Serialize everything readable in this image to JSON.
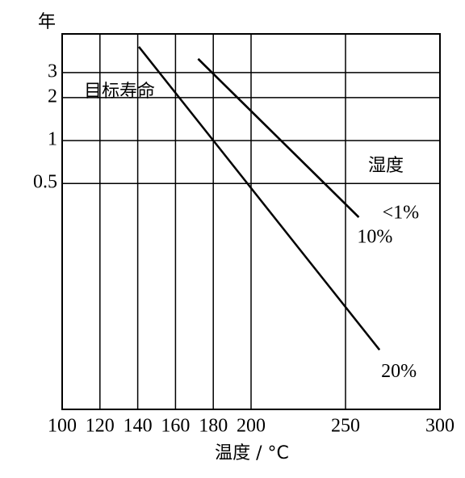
{
  "chart_data": {
    "type": "line",
    "y_unit_label": "年",
    "x_label": "温度 / °C",
    "annotation": "目标寿命",
    "legend_title": "湿度",
    "xlim": [
      100,
      300
    ],
    "xticks": [
      100,
      120,
      140,
      160,
      180,
      200,
      250,
      300
    ],
    "ylim": [
      0.013,
      5.6
    ],
    "yticks": [
      3,
      2,
      1,
      0.5
    ],
    "log_y": true,
    "grid": true,
    "series": [
      {
        "name": "<1%",
        "color": "#000000",
        "x": [
          172,
          257
        ],
        "values": [
          3.74,
          0.29
        ]
      },
      {
        "name": "10%",
        "color": "#000000",
        "x": [
          172,
          257
        ],
        "values": [
          3.74,
          0.29
        ]
      },
      {
        "name": "20%",
        "color": "#000000",
        "x": [
          140.6,
          268
        ],
        "values": [
          4.55,
          0.034
        ]
      }
    ]
  }
}
